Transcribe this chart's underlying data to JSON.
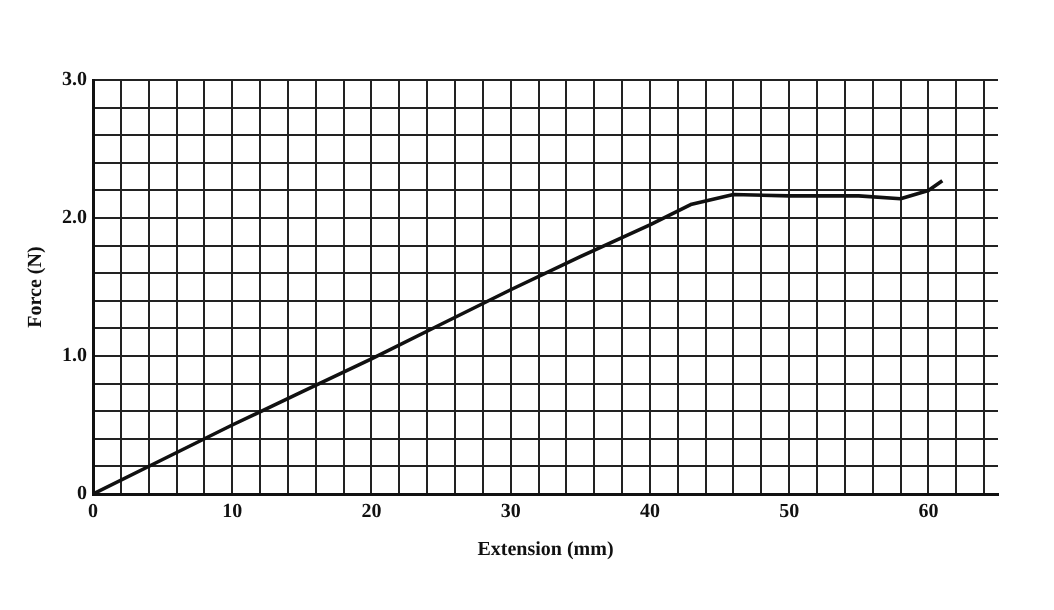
{
  "chart_data": {
    "type": "line",
    "xlabel": "Extension (mm)",
    "ylabel": "Force (N)",
    "x": [
      0,
      5,
      10,
      15,
      20,
      25,
      30,
      35,
      40,
      43,
      46,
      50,
      55,
      58,
      60,
      61
    ],
    "series": [
      {
        "color": "#111111",
        "values": [
          0,
          0.25,
          0.5,
          0.74,
          0.98,
          1.23,
          1.48,
          1.72,
          1.95,
          2.1,
          2.17,
          2.16,
          2.16,
          2.14,
          2.2,
          2.27
        ]
      }
    ],
    "xlim": [
      0,
      65
    ],
    "xticks": [
      0,
      {
        "value": 2,
        "label": null
      },
      {
        "value": 4,
        "label": null
      },
      {
        "value": 6,
        "label": null
      },
      {
        "value": 8,
        "label": null
      },
      10,
      {
        "value": 12,
        "label": null
      },
      {
        "value": 14,
        "label": null
      },
      {
        "value": 16,
        "label": null
      },
      {
        "value": 18,
        "label": null
      },
      20,
      {
        "value": 22,
        "label": null
      },
      {
        "value": 24,
        "label": null
      },
      {
        "value": 26,
        "label": null
      },
      {
        "value": 28,
        "label": null
      },
      30,
      {
        "value": 32,
        "label": null
      },
      {
        "value": 34,
        "label": null
      },
      {
        "value": 36,
        "label": null
      },
      {
        "value": 38,
        "label": null
      },
      40,
      {
        "value": 42,
        "label": null
      },
      {
        "value": 44,
        "label": null
      },
      {
        "value": 46,
        "label": null
      },
      {
        "value": 48,
        "label": null
      },
      50,
      {
        "value": 52,
        "label": null
      },
      {
        "value": 54,
        "label": null
      },
      {
        "value": 56,
        "label": null
      },
      {
        "value": 58,
        "label": null
      },
      60,
      {
        "value": 62,
        "label": null
      },
      {
        "value": 64,
        "label": null
      }
    ],
    "ylim": [
      0,
      3
    ],
    "yticks": [
      0,
      {
        "value": 0.2,
        "label": null
      },
      {
        "value": 0.4,
        "label": null
      },
      {
        "value": 0.6,
        "label": null
      },
      {
        "value": 0.8,
        "label": null
      },
      {
        "value": 1,
        "label": "1.0"
      },
      {
        "value": 1.2,
        "label": null
      },
      {
        "value": 1.4,
        "label": null
      },
      {
        "value": 1.6,
        "label": null
      },
      {
        "value": 1.8,
        "label": null
      },
      {
        "value": 2,
        "label": "2.0"
      },
      {
        "value": 2.2,
        "label": null
      },
      {
        "value": 2.4,
        "label": null
      },
      {
        "value": 2.6,
        "label": null
      },
      {
        "value": 2.8,
        "label": null
      },
      {
        "value": 3,
        "label": "3.0"
      }
    ],
    "grid": true,
    "legend": false,
    "marker": "none",
    "line_style": "solid"
  }
}
